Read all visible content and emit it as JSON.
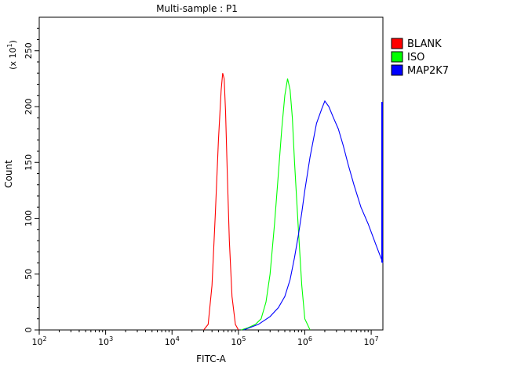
{
  "chart_data": {
    "type": "line",
    "title": "Multi-sample : P1",
    "xlabel": "FITC-A",
    "ylabel": "Count",
    "y_multiplier_label": {
      "base": "(x 10",
      "exponent": "1",
      "close": ")"
    },
    "x_scale": "log",
    "xlim": [
      100,
      15000000
    ],
    "ylim": [
      0,
      280
    ],
    "grid": false,
    "legend_position": "top-right",
    "x_ticks": [
      {
        "base": "10",
        "exponent": "2",
        "value": 100
      },
      {
        "base": "10",
        "exponent": "3",
        "value": 1000
      },
      {
        "base": "10",
        "exponent": "4",
        "value": 10000
      },
      {
        "base": "10",
        "exponent": "5",
        "value": 100000
      },
      {
        "base": "10",
        "exponent": "6",
        "value": 1000000
      },
      {
        "base": "10",
        "exponent": "7",
        "value": 10000000
      }
    ],
    "y_ticks": [
      "0",
      "50",
      "100",
      "150",
      "200",
      "250"
    ],
    "series": [
      {
        "name": "BLANK",
        "color": "#ff0000",
        "x": [
          30000,
          35000,
          40000,
          45000,
          50000,
          55000,
          58000,
          61000,
          64000,
          68000,
          73000,
          80000,
          90000,
          100000
        ],
        "values": [
          0,
          5,
          40,
          105,
          170,
          215,
          230,
          225,
          195,
          140,
          80,
          30,
          5,
          0
        ]
      },
      {
        "name": "ISO",
        "color": "#00ff00",
        "x": [
          110000,
          140000,
          180000,
          220000,
          260000,
          300000,
          350000,
          400000,
          450000,
          500000,
          550000,
          600000,
          650000,
          700000,
          800000,
          900000,
          1000000,
          1200000
        ],
        "values": [
          0,
          2,
          5,
          10,
          25,
          50,
          95,
          140,
          180,
          210,
          225,
          215,
          190,
          150,
          90,
          40,
          10,
          0
        ]
      },
      {
        "name": "MAP2K7",
        "color": "#0000ff",
        "x": [
          120000,
          200000,
          300000,
          400000,
          500000,
          600000,
          700000,
          800000,
          900000,
          1000000,
          1200000,
          1500000,
          1800000,
          2000000,
          2300000,
          2700000,
          3200000,
          3800000,
          4500000,
          5500000,
          7000000,
          9000000,
          12000000,
          15000000
        ],
        "values": [
          0,
          5,
          12,
          20,
          30,
          45,
          65,
          85,
          105,
          125,
          155,
          185,
          198,
          205,
          200,
          190,
          180,
          165,
          148,
          130,
          110,
          95,
          75,
          60
        ]
      }
    ]
  }
}
